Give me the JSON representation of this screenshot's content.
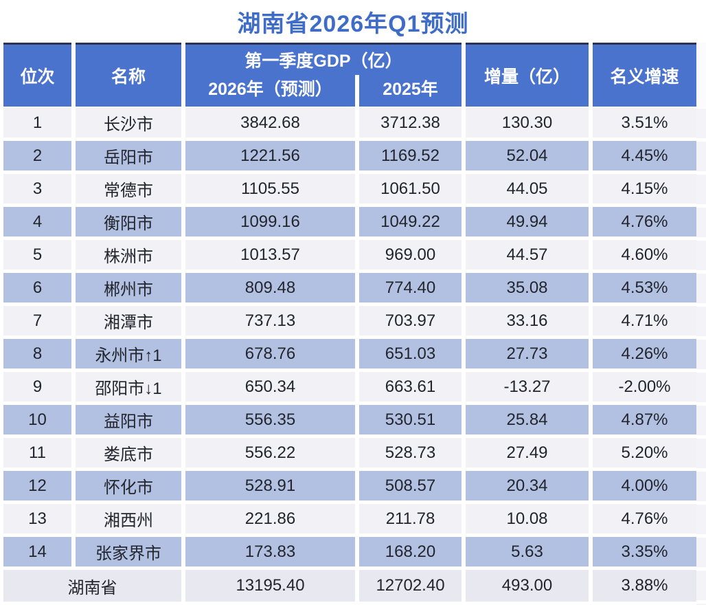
{
  "title": "湖南省2026年Q1预测",
  "colors": {
    "header_blue": "#4A73CE",
    "title_blue": "#3F6CC7",
    "row_even": "#B2C1E2",
    "row_odd": "#F1F1F6",
    "total_row": "#E8E9F0",
    "text_dark": "#23252D",
    "header_text": "#FFFFFF"
  },
  "table": {
    "headers": {
      "rank": "位次",
      "name": "名称",
      "gdp_group": "第一季度GDP（亿）",
      "gdp_2026": "2026年（预测）",
      "gdp_2025": "2025年",
      "increment": "增量（亿）",
      "growth": "名义增速"
    },
    "rows": [
      {
        "rank": "1",
        "name": "长沙市",
        "gdp_2026": "3842.68",
        "gdp_2025": "3712.38",
        "increment": "130.30",
        "growth": "3.51%"
      },
      {
        "rank": "2",
        "name": "岳阳市",
        "gdp_2026": "1221.56",
        "gdp_2025": "1169.52",
        "increment": "52.04",
        "growth": "4.45%"
      },
      {
        "rank": "3",
        "name": "常德市",
        "gdp_2026": "1105.55",
        "gdp_2025": "1061.50",
        "increment": "44.05",
        "growth": "4.15%"
      },
      {
        "rank": "4",
        "name": "衡阳市",
        "gdp_2026": "1099.16",
        "gdp_2025": "1049.22",
        "increment": "49.94",
        "growth": "4.76%"
      },
      {
        "rank": "5",
        "name": "株洲市",
        "gdp_2026": "1013.57",
        "gdp_2025": "969.00",
        "increment": "44.57",
        "growth": "4.60%"
      },
      {
        "rank": "6",
        "name": "郴州市",
        "gdp_2026": "809.48",
        "gdp_2025": "774.40",
        "increment": "35.08",
        "growth": "4.53%"
      },
      {
        "rank": "7",
        "name": "湘潭市",
        "gdp_2026": "737.13",
        "gdp_2025": "703.97",
        "increment": "33.16",
        "growth": "4.71%"
      },
      {
        "rank": "8",
        "name": "永州市↑1",
        "gdp_2026": "678.76",
        "gdp_2025": "651.03",
        "increment": "27.73",
        "growth": "4.26%"
      },
      {
        "rank": "9",
        "name": "邵阳市↓1",
        "gdp_2026": "650.34",
        "gdp_2025": "663.61",
        "increment": "-13.27",
        "growth": "-2.00%"
      },
      {
        "rank": "10",
        "name": "益阳市",
        "gdp_2026": "556.35",
        "gdp_2025": "530.51",
        "increment": "25.84",
        "growth": "4.87%"
      },
      {
        "rank": "11",
        "name": "娄底市",
        "gdp_2026": "556.22",
        "gdp_2025": "528.73",
        "increment": "27.49",
        "growth": "5.20%"
      },
      {
        "rank": "12",
        "name": "怀化市",
        "gdp_2026": "528.91",
        "gdp_2025": "508.57",
        "increment": "20.34",
        "growth": "4.00%"
      },
      {
        "rank": "13",
        "name": "湘西州",
        "gdp_2026": "221.86",
        "gdp_2025": "211.78",
        "increment": "10.08",
        "growth": "4.76%"
      },
      {
        "rank": "14",
        "name": "张家界市",
        "gdp_2026": "173.83",
        "gdp_2025": "168.20",
        "increment": "5.63",
        "growth": "3.35%"
      }
    ],
    "total": {
      "name": "湖南省",
      "gdp_2026": "13195.40",
      "gdp_2025": "12702.40",
      "increment": "493.00",
      "growth": "3.88%"
    }
  }
}
